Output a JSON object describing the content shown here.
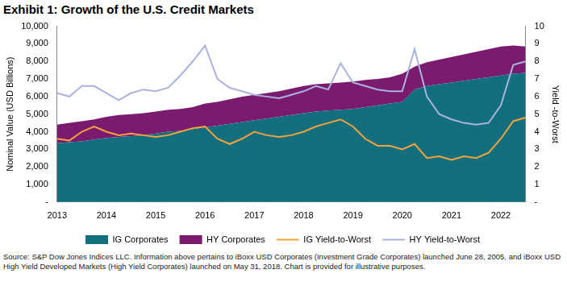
{
  "chart_data": {
    "type": "line",
    "title": "Exhibit 1: Growth of the U.S. Credit Markets",
    "note": "Source: S&P Dow Jones Indices LLC.  Information above pertains to iBoxx USD Corporates (Investment Grade Corporates) launched June 28, 2005, and iBoxx USD High Yield Developed Markets (High Yield Corporates) launched on May 31, 2018.  Chart is provided for illustrative purposes.",
    "y_label": "Nominal Value (USD Billions)",
    "y2_label": "Yield -to-Worst",
    "categories": [
      "2013",
      null,
      null,
      null,
      "2014",
      null,
      null,
      null,
      "2015",
      null,
      null,
      null,
      "2016",
      null,
      null,
      null,
      "2017",
      null,
      null,
      null,
      "2018",
      null,
      null,
      null,
      "2019",
      null,
      null,
      null,
      "2020",
      null,
      null,
      null,
      "2021",
      null,
      null,
      null,
      "2022",
      null,
      null
    ],
    "stacked": true,
    "grid": false,
    "legend": "bottom",
    "series": [
      {
        "name": "IG Corporates",
        "type": "area",
        "color": "#136e7e",
        "values": [
          3350,
          3400,
          3450,
          3550,
          3650,
          3700,
          3750,
          3800,
          3900,
          4000,
          4050,
          4150,
          4250,
          4350,
          4450,
          4550,
          4650,
          4750,
          4850,
          4950,
          5050,
          5150,
          5200,
          5250,
          5300,
          5400,
          5500,
          5600,
          5700,
          6400,
          6600,
          6700,
          6800,
          6900,
          7000,
          7100,
          7200,
          7300,
          7350
        ]
      },
      {
        "name": "HY Corporates",
        "type": "area",
        "color": "#7b1b70",
        "values": [
          1050,
          1100,
          1150,
          1150,
          1200,
          1250,
          1250,
          1250,
          1250,
          1250,
          1250,
          1250,
          1350,
          1350,
          1400,
          1450,
          1450,
          1450,
          1450,
          1500,
          1550,
          1550,
          1550,
          1550,
          1550,
          1550,
          1500,
          1500,
          1600,
          1300,
          1350,
          1400,
          1450,
          1500,
          1550,
          1600,
          1650,
          1600,
          1500
        ]
      },
      {
        "name": "IG Yield-to-Worst",
        "type": "line",
        "axis": "y2",
        "color": "#f4a23c",
        "values": [
          3.6,
          3.5,
          4.0,
          4.3,
          4.0,
          3.8,
          3.9,
          3.8,
          3.7,
          3.8,
          4.0,
          4.2,
          4.3,
          3.6,
          3.3,
          3.6,
          4.0,
          3.8,
          3.7,
          3.8,
          4.0,
          4.3,
          4.5,
          4.7,
          4.3,
          3.6,
          3.2,
          3.2,
          3.0,
          3.3,
          2.5,
          2.6,
          2.4,
          2.6,
          2.5,
          2.8,
          3.6,
          4.6,
          4.8
        ]
      },
      {
        "name": "HY Yield-to-Worst",
        "type": "line",
        "axis": "y2",
        "color": "#a9b3dd",
        "values": [
          6.2,
          6.0,
          6.6,
          6.6,
          6.2,
          5.8,
          6.2,
          6.4,
          6.3,
          6.5,
          7.2,
          8.0,
          8.9,
          7.0,
          6.5,
          6.3,
          6.1,
          6.0,
          5.9,
          6.1,
          6.3,
          6.6,
          6.4,
          7.9,
          6.8,
          6.6,
          6.4,
          6.3,
          6.3,
          8.7,
          6.0,
          5.0,
          4.7,
          4.5,
          4.4,
          4.5,
          5.5,
          7.8,
          8.0
        ]
      }
    ],
    "ylim": [
      0,
      10000
    ],
    "yticks": [
      {
        "value": 0,
        "label": "-"
      },
      {
        "value": 1000,
        "label": "1,000"
      },
      {
        "value": 2000,
        "label": "2,000"
      },
      {
        "value": 3000,
        "label": "3,000"
      },
      {
        "value": 4000,
        "label": "4,000"
      },
      {
        "value": 5000,
        "label": "5,000"
      },
      {
        "value": 6000,
        "label": "6,000"
      },
      {
        "value": 7000,
        "label": "7,000"
      },
      {
        "value": 8000,
        "label": "8,000"
      },
      {
        "value": 9000,
        "label": "9,000"
      },
      {
        "value": 10000,
        "label": "10,000"
      }
    ],
    "y2lim": [
      0,
      10
    ],
    "y2ticks": [
      {
        "value": 0,
        "label": "-"
      },
      1,
      2,
      3,
      4,
      5,
      6,
      7,
      8,
      9,
      10
    ]
  }
}
